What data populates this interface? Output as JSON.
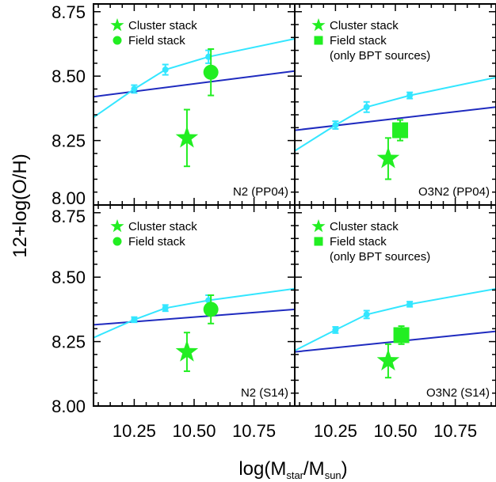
{
  "figure": {
    "ylabel": "12+log(O/H)",
    "xlabel_main": "log(M",
    "xlabel_sub1": "star",
    "xlabel_mid": "/M",
    "xlabel_sub2": "sun",
    "xlabel_end": ")"
  },
  "colors": {
    "cyan": "#33e6ff",
    "blue": "#1f2bbf",
    "green": "#22ee22",
    "frame": "#000000"
  },
  "chart_data": [
    {
      "type": "scatter",
      "panel": "top-left",
      "corner_label": "N2 (PP04)",
      "legend": [
        "Cluster stack",
        "Field stack"
      ],
      "legend_markers": [
        "star",
        "circle"
      ],
      "legend_position": "top-left",
      "xlim": [
        10.08,
        10.92
      ],
      "ylim": [
        8.0,
        8.78
      ],
      "xticks": [
        "10.25",
        "10.50",
        "10.75"
      ],
      "yticks": [
        "8.00",
        "8.25",
        "8.50",
        "8.75"
      ],
      "cyan_points": [
        {
          "x": 10.25,
          "y": 8.45,
          "err": 0.015
        },
        {
          "x": 10.38,
          "y": 8.525,
          "err": 0.02
        },
        {
          "x": 10.56,
          "y": 8.575,
          "err": 0.025
        }
      ],
      "cyan_line": [
        [
          10.08,
          8.34
        ],
        [
          10.25,
          8.45
        ],
        [
          10.38,
          8.525
        ],
        [
          10.56,
          8.575
        ],
        [
          10.92,
          8.645
        ]
      ],
      "blue_line": [
        [
          10.08,
          8.42
        ],
        [
          10.92,
          8.52
        ]
      ],
      "cluster": {
        "x": 10.47,
        "y": 8.26,
        "err_low": 0.11,
        "err_high": 0.11
      },
      "field": {
        "x": 10.57,
        "y": 8.515,
        "err_low": 0.09,
        "err_high": 0.09
      }
    },
    {
      "type": "scatter",
      "panel": "top-right",
      "corner_label": "O3N2 (PP04)",
      "legend": [
        "Cluster stack",
        "Field stack",
        "(only BPT sources)"
      ],
      "legend_markers": [
        "star",
        "square"
      ],
      "legend_position": "top-left",
      "xlim": [
        10.08,
        10.92
      ],
      "ylim": [
        8.0,
        8.78
      ],
      "xticks": [
        "10.25",
        "10.50",
        "10.75"
      ],
      "cyan_points": [
        {
          "x": 10.25,
          "y": 8.31,
          "err": 0.015
        },
        {
          "x": 10.38,
          "y": 8.38,
          "err": 0.02
        },
        {
          "x": 10.56,
          "y": 8.425,
          "err": 0.012
        }
      ],
      "cyan_line": [
        [
          10.08,
          8.21
        ],
        [
          10.25,
          8.31
        ],
        [
          10.38,
          8.38
        ],
        [
          10.56,
          8.425
        ],
        [
          10.92,
          8.495
        ]
      ],
      "blue_line": [
        [
          10.08,
          8.29
        ],
        [
          10.92,
          8.38
        ]
      ],
      "cluster": {
        "x": 10.47,
        "y": 8.18,
        "err_low": 0.08,
        "err_high": 0.08
      },
      "field": {
        "x": 10.52,
        "y": 8.29,
        "err_low": 0.04,
        "err_high": 0.04
      }
    },
    {
      "type": "scatter",
      "panel": "bottom-left",
      "corner_label": "N2 (S14)",
      "legend": [
        "Cluster stack",
        "Field stack"
      ],
      "legend_markers": [
        "star",
        "circle"
      ],
      "legend_position": "top-left",
      "xlim": [
        10.08,
        10.92
      ],
      "ylim": [
        8.0,
        8.78
      ],
      "xticks": [
        "10.25",
        "10.50",
        "10.75"
      ],
      "yticks": [
        "8.00",
        "8.25",
        "8.50",
        "8.75"
      ],
      "cyan_points": [
        {
          "x": 10.25,
          "y": 8.335,
          "err": 0.01
        },
        {
          "x": 10.38,
          "y": 8.38,
          "err": 0.012
        },
        {
          "x": 10.56,
          "y": 8.41,
          "err": 0.02
        }
      ],
      "cyan_line": [
        [
          10.08,
          8.265
        ],
        [
          10.25,
          8.335
        ],
        [
          10.38,
          8.38
        ],
        [
          10.56,
          8.41
        ],
        [
          10.92,
          8.455
        ]
      ],
      "blue_line": [
        [
          10.08,
          8.315
        ],
        [
          10.92,
          8.375
        ]
      ],
      "cluster": {
        "x": 10.47,
        "y": 8.21,
        "err_low": 0.075,
        "err_high": 0.075
      },
      "field": {
        "x": 10.57,
        "y": 8.375,
        "err_low": 0.055,
        "err_high": 0.055
      }
    },
    {
      "type": "scatter",
      "panel": "bottom-right",
      "corner_label": "O3N2 (S14)",
      "legend": [
        "Cluster stack",
        "Field stack",
        "(only BPT sources)"
      ],
      "legend_markers": [
        "star",
        "square"
      ],
      "legend_position": "top-left",
      "xlim": [
        10.08,
        10.92
      ],
      "ylim": [
        8.0,
        8.78
      ],
      "xticks": [
        "10.25",
        "10.50",
        "10.75"
      ],
      "cyan_points": [
        {
          "x": 10.25,
          "y": 8.295,
          "err": 0.012
        },
        {
          "x": 10.38,
          "y": 8.355,
          "err": 0.015
        },
        {
          "x": 10.56,
          "y": 8.395,
          "err": 0.01
        }
      ],
      "cyan_line": [
        [
          10.08,
          8.215
        ],
        [
          10.25,
          8.295
        ],
        [
          10.38,
          8.355
        ],
        [
          10.56,
          8.395
        ],
        [
          10.92,
          8.455
        ]
      ],
      "blue_line": [
        [
          10.08,
          8.21
        ],
        [
          10.92,
          8.29
        ]
      ],
      "cluster": {
        "x": 10.47,
        "y": 8.175,
        "err_low": 0.065,
        "err_high": 0.065
      },
      "field": {
        "x": 10.525,
        "y": 8.275,
        "err_low": 0.035,
        "err_high": 0.035
      }
    }
  ]
}
